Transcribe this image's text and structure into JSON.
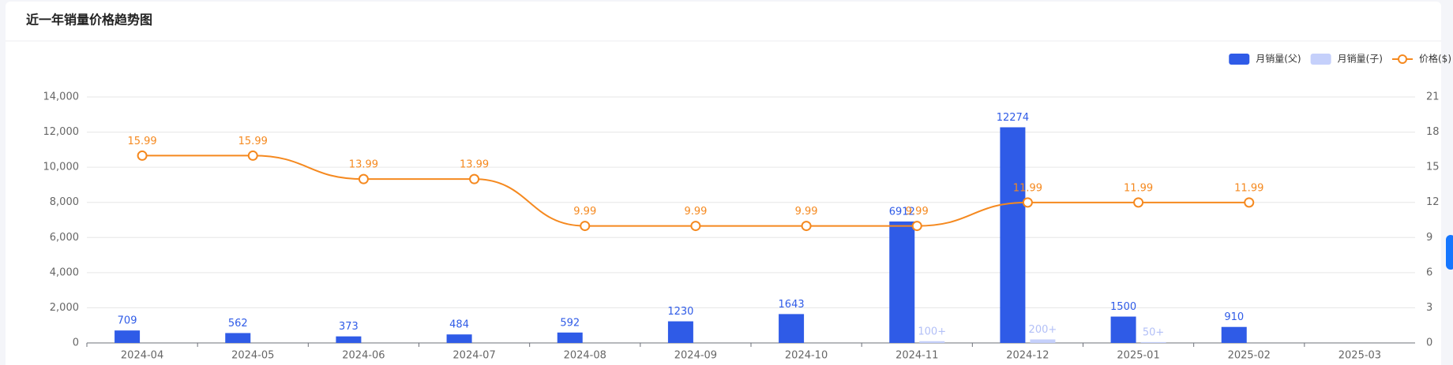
{
  "chart_data": {
    "type": "bar-line",
    "title": "近一年销量价格趋势图",
    "categories": [
      "2024-04",
      "2024-05",
      "2024-06",
      "2024-07",
      "2024-08",
      "2024-09",
      "2024-10",
      "2024-11",
      "2024-12",
      "2025-01",
      "2025-02",
      "2025-03"
    ],
    "series": [
      {
        "name": "月销量(父)",
        "type": "bar",
        "color": "#2f5be7",
        "label_color": "#2f5be7",
        "values": [
          709,
          562,
          373,
          484,
          592,
          1230,
          1643,
          6912,
          12274,
          1500,
          910,
          null
        ]
      },
      {
        "name": "月销量(子)",
        "type": "bar",
        "color": "#c5d0fb",
        "label_color": "#b3c0f7",
        "values": [
          null,
          null,
          null,
          null,
          null,
          null,
          null,
          100,
          200,
          50,
          null,
          null
        ],
        "value_labels": [
          null,
          null,
          null,
          null,
          null,
          null,
          null,
          "100+",
          "200+",
          "50+",
          null,
          null
        ]
      },
      {
        "name": "价格($)",
        "type": "line",
        "axis": "y2",
        "color": "#f5891f",
        "label_color": "#f5891f",
        "values": [
          15.99,
          15.99,
          13.99,
          13.99,
          9.99,
          9.99,
          9.99,
          9.99,
          11.99,
          11.99,
          11.99,
          null
        ]
      }
    ],
    "ylim": [
      0,
      14000
    ],
    "yticks": [
      0,
      {
        "value": 2000,
        "label": "2,000"
      },
      {
        "value": 4000,
        "label": "4,000"
      },
      {
        "value": 6000,
        "label": "6,000"
      },
      {
        "value": 8000,
        "label": "8,000"
      },
      {
        "value": 10000,
        "label": "10,000"
      },
      {
        "value": 12000,
        "label": "12,000"
      },
      {
        "value": 14000,
        "label": "14,000"
      }
    ],
    "y2lim": [
      0,
      21
    ],
    "y2ticks": [
      0,
      3,
      6,
      9,
      12,
      15,
      18,
      21
    ],
    "grid": true,
    "legend": "top-right"
  }
}
